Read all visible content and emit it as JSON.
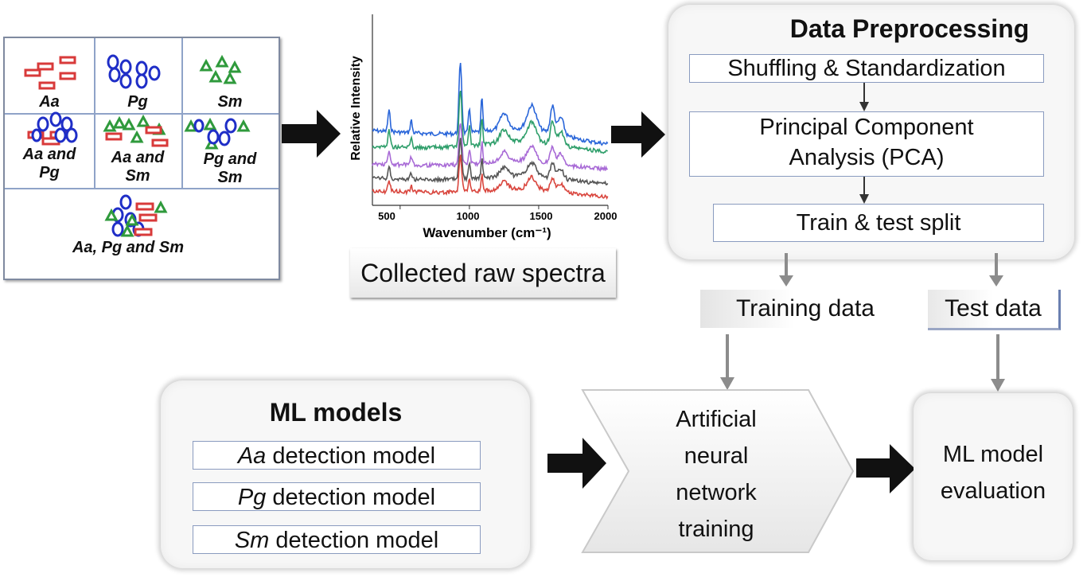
{
  "samples": {
    "aa": "Aa",
    "pg": "Pg",
    "sm": "Sm",
    "aa_pg": [
      "Aa and",
      "Pg"
    ],
    "aa_sm": [
      "Aa and",
      "Sm"
    ],
    "pg_sm": [
      "Pg and",
      "Sm"
    ],
    "all": "Aa, Pg and Sm"
  },
  "spectra": {
    "ylabel": "Relative Intensity",
    "xlabel": "Wavenumber (cm⁻¹)",
    "xticks": [
      "500",
      "1000",
      "1500",
      "2000"
    ],
    "caption": "Collected raw spectra",
    "colors": [
      "#2a66d9",
      "#2e9e6a",
      "#a86ad6",
      "#555555",
      "#d9463e"
    ]
  },
  "preprocessing": {
    "title": "Data Preprocessing",
    "step1": "Shuffling & Standardization",
    "step2a": "Principal Component",
    "step2b": "Analysis (PCA)",
    "step3": "Train & test split"
  },
  "data_split": {
    "training": "Training data",
    "test": "Test data"
  },
  "ml_models": {
    "title": "ML models",
    "models": [
      {
        "species": "Aa",
        "suffix": " detection model"
      },
      {
        "species": "Pg",
        "suffix": " detection model"
      },
      {
        "species": "Sm",
        "suffix": " detection model"
      }
    ]
  },
  "ann": [
    "Artificial",
    "neural",
    "network",
    "training"
  ],
  "evaluation": [
    "ML model",
    "evaluation"
  ],
  "colors": {
    "aa": "#d83a3a",
    "pg": "#1f2ec7",
    "sm": "#2f9a3c",
    "box_border": "#8a9bbf",
    "arrow_gray": "#8c8c8c"
  }
}
